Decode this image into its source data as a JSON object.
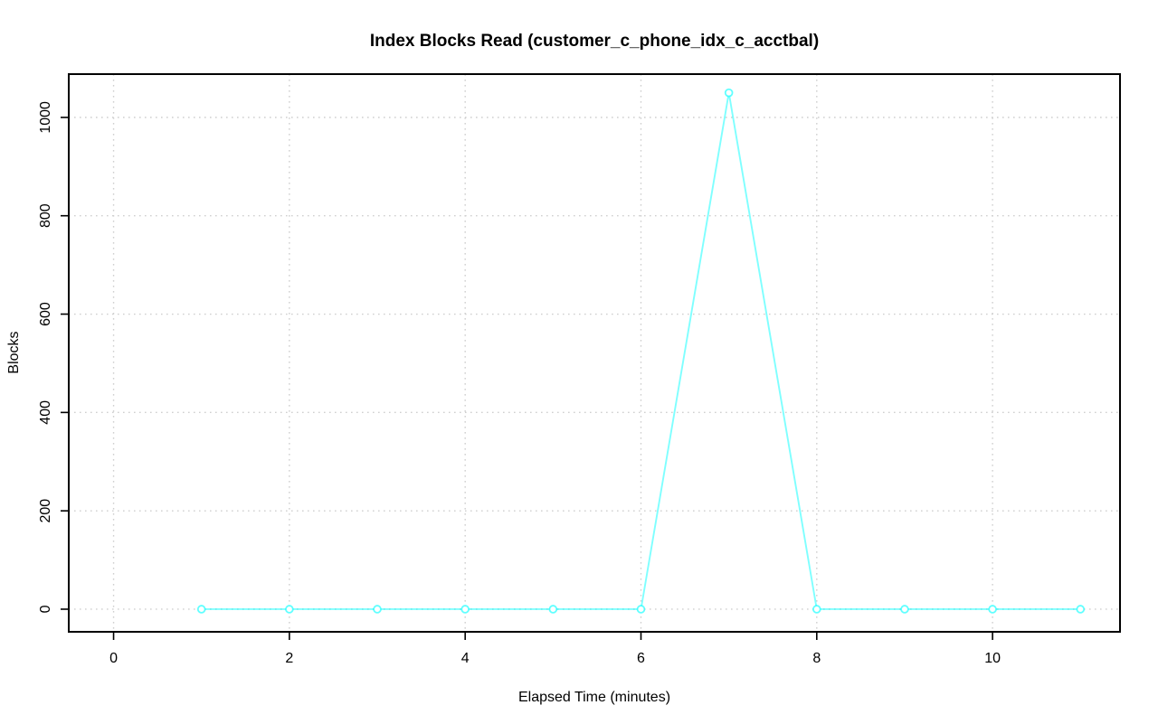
{
  "chart_data": {
    "type": "line",
    "title": "Index Blocks Read (customer_c_phone_idx_c_acctbal)",
    "xlabel": "Elapsed Time (minutes)",
    "ylabel": "Blocks",
    "x": [
      1,
      2,
      3,
      4,
      5,
      6,
      7,
      8,
      9,
      10,
      11
    ],
    "values": [
      0,
      0,
      0,
      0,
      0,
      0,
      1050,
      0,
      0,
      0,
      0
    ],
    "series": [
      {
        "name": "index blocks read",
        "values": [
          0,
          0,
          0,
          0,
          0,
          0,
          1050,
          0,
          0,
          0,
          0
        ]
      }
    ],
    "xticks": [
      0,
      2,
      4,
      6,
      8,
      10
    ],
    "yticks": [
      0,
      200,
      400,
      600,
      800,
      1000
    ],
    "xlim": [
      -0.51,
      11.45
    ],
    "ylim": [
      -46,
      1088
    ],
    "grid": true,
    "legend": "none",
    "marker": "open-circle",
    "series_color": "#00FFFF",
    "grid_color": "#CFCFCF",
    "axis_color": "#000000",
    "background_color": "#FFFFFF"
  }
}
